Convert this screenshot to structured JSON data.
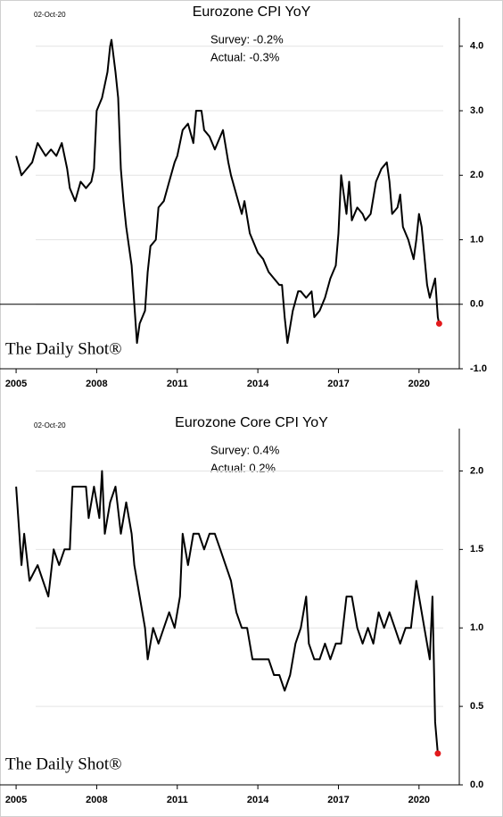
{
  "chart_data": [
    {
      "type": "line",
      "title": "Eurozone CPI YoY",
      "date": "02-Oct-20",
      "source": "The Daily Shot®",
      "annotations": [
        "Survey: -0.2%",
        "Actual:  -0.3%"
      ],
      "x": [
        2005.0,
        2005.2,
        2005.4,
        2005.6,
        2005.8,
        2006.1,
        2006.3,
        2006.5,
        2006.7,
        2006.9,
        2007.0,
        2007.2,
        2007.4,
        2007.6,
        2007.8,
        2007.9,
        2008.0,
        2008.2,
        2008.4,
        2008.5,
        2008.55,
        2008.7,
        2008.8,
        2008.9,
        2009.0,
        2009.1,
        2009.3,
        2009.4,
        2009.5,
        2009.6,
        2009.8,
        2009.9,
        2010.0,
        2010.2,
        2010.3,
        2010.5,
        2010.7,
        2010.9,
        2011.0,
        2011.2,
        2011.4,
        2011.6,
        2011.7,
        2011.9,
        2012.0,
        2012.2,
        2012.4,
        2012.6,
        2012.7,
        2012.9,
        2013.0,
        2013.2,
        2013.4,
        2013.5,
        2013.7,
        2013.9,
        2014.0,
        2014.2,
        2014.4,
        2014.6,
        2014.8,
        2014.9,
        2015.0,
        2015.1,
        2015.3,
        2015.5,
        2015.6,
        2015.8,
        2016.0,
        2016.1,
        2016.3,
        2016.5,
        2016.7,
        2016.9,
        2017.0,
        2017.1,
        2017.3,
        2017.4,
        2017.5,
        2017.7,
        2017.9,
        2018.0,
        2018.2,
        2018.4,
        2018.6,
        2018.8,
        2018.9,
        2019.0,
        2019.2,
        2019.3,
        2019.4,
        2019.6,
        2019.8,
        2019.9,
        2020.0,
        2020.1,
        2020.3,
        2020.4,
        2020.6,
        2020.7,
        2020.75
      ],
      "series": [
        {
          "name": "Eurozone CPI YoY",
          "color": "#000000",
          "values": [
            2.3,
            2.0,
            2.1,
            2.2,
            2.5,
            2.3,
            2.4,
            2.3,
            2.5,
            2.1,
            1.8,
            1.6,
            1.9,
            1.8,
            1.9,
            2.1,
            3.0,
            3.2,
            3.6,
            4.0,
            4.1,
            3.6,
            3.2,
            2.1,
            1.6,
            1.2,
            0.6,
            0.0,
            -0.6,
            -0.3,
            -0.1,
            0.5,
            0.9,
            1.0,
            1.5,
            1.6,
            1.9,
            2.2,
            2.3,
            2.7,
            2.8,
            2.5,
            3.0,
            3.0,
            2.7,
            2.6,
            2.4,
            2.6,
            2.7,
            2.2,
            2.0,
            1.7,
            1.4,
            1.6,
            1.1,
            0.9,
            0.8,
            0.7,
            0.5,
            0.4,
            0.3,
            0.3,
            -0.2,
            -0.6,
            -0.1,
            0.2,
            0.2,
            0.1,
            0.2,
            -0.2,
            -0.1,
            0.1,
            0.4,
            0.6,
            1.1,
            2.0,
            1.4,
            1.9,
            1.3,
            1.5,
            1.4,
            1.3,
            1.4,
            1.9,
            2.1,
            2.2,
            1.9,
            1.4,
            1.5,
            1.7,
            1.2,
            1.0,
            0.7,
            1.0,
            1.4,
            1.2,
            0.3,
            0.1,
            0.4,
            -0.2,
            -0.3
          ]
        }
      ],
      "xlim": [
        2004.4,
        2021.5
      ],
      "xticks": [
        2005,
        2008,
        2011,
        2014,
        2017,
        2020
      ],
      "ylim": [
        -1.0,
        4.44
      ],
      "yticks": [
        {
          "value": -1,
          "label": "-1.0"
        },
        {
          "value": 0,
          "label": "0.0"
        },
        {
          "value": 1,
          "label": "1.0"
        },
        {
          "value": 2,
          "label": "2.0"
        },
        {
          "value": 3,
          "label": "3.0"
        },
        {
          "value": 4,
          "label": "4.0"
        }
      ],
      "grid": true,
      "zero_line": true,
      "last_point_color": "#e31a1c"
    },
    {
      "type": "line",
      "title": "Eurozone Core CPI YoY",
      "date": "02-Oct-20",
      "source": "The Daily Shot®",
      "annotations": [
        "Survey: 0.4%",
        "Actual:  0.2%"
      ],
      "x": [
        2005.0,
        2005.2,
        2005.3,
        2005.5,
        2005.8,
        2006.0,
        2006.2,
        2006.4,
        2006.6,
        2006.8,
        2007.0,
        2007.1,
        2007.4,
        2007.6,
        2007.7,
        2007.9,
        2008.1,
        2008.2,
        2008.3,
        2008.5,
        2008.7,
        2008.9,
        2009.1,
        2009.3,
        2009.4,
        2009.6,
        2009.8,
        2009.9,
        2010.1,
        2010.3,
        2010.5,
        2010.7,
        2010.9,
        2011.1,
        2011.2,
        2011.4,
        2011.6,
        2011.8,
        2012.0,
        2012.2,
        2012.4,
        2012.6,
        2012.8,
        2013.0,
        2013.2,
        2013.4,
        2013.6,
        2013.8,
        2014.0,
        2014.2,
        2014.4,
        2014.6,
        2014.8,
        2015.0,
        2015.2,
        2015.4,
        2015.6,
        2015.8,
        2015.9,
        2016.1,
        2016.3,
        2016.5,
        2016.7,
        2016.9,
        2017.1,
        2017.3,
        2017.5,
        2017.7,
        2017.9,
        2018.1,
        2018.3,
        2018.5,
        2018.7,
        2018.9,
        2019.1,
        2019.3,
        2019.5,
        2019.7,
        2019.9,
        2020.0,
        2020.2,
        2020.4,
        2020.5,
        2020.6,
        2020.7
      ],
      "series": [
        {
          "name": "Eurozone Core CPI YoY",
          "color": "#000000",
          "values": [
            1.9,
            1.4,
            1.6,
            1.3,
            1.4,
            1.3,
            1.2,
            1.5,
            1.4,
            1.5,
            1.5,
            1.9,
            1.9,
            1.9,
            1.7,
            1.9,
            1.7,
            2.0,
            1.6,
            1.8,
            1.9,
            1.6,
            1.8,
            1.6,
            1.4,
            1.2,
            1.0,
            0.8,
            1.0,
            0.9,
            1.0,
            1.1,
            1.0,
            1.2,
            1.6,
            1.4,
            1.6,
            1.6,
            1.5,
            1.6,
            1.6,
            1.5,
            1.4,
            1.3,
            1.1,
            1.0,
            1.0,
            0.8,
            0.8,
            0.8,
            0.8,
            0.7,
            0.7,
            0.6,
            0.7,
            0.9,
            1.0,
            1.2,
            0.9,
            0.8,
            0.8,
            0.9,
            0.8,
            0.9,
            0.9,
            1.2,
            1.2,
            1.0,
            0.9,
            1.0,
            0.9,
            1.1,
            1.0,
            1.1,
            1.0,
            0.9,
            1.0,
            1.0,
            1.3,
            1.2,
            1.0,
            0.8,
            1.2,
            0.4,
            0.2
          ]
        }
      ],
      "xlim": [
        2004.4,
        2021.5
      ],
      "xticks": [
        2005,
        2008,
        2011,
        2014,
        2017,
        2020
      ],
      "ylim": [
        0,
        2.27
      ],
      "yticks": [
        {
          "value": 0,
          "label": "0.0"
        },
        {
          "value": 0.5,
          "label": "0.5"
        },
        {
          "value": 1,
          "label": "1.0"
        },
        {
          "value": 1.5,
          "label": "1.5"
        },
        {
          "value": 2,
          "label": "2.0"
        }
      ],
      "grid": true,
      "zero_line": false,
      "last_point_color": "#e31a1c"
    }
  ]
}
